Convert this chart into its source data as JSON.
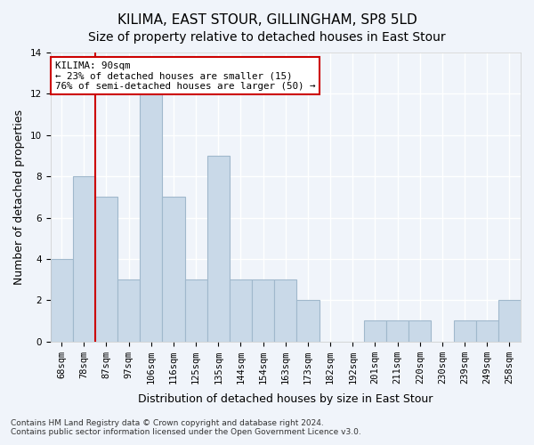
{
  "title": "KILIMA, EAST STOUR, GILLINGHAM, SP8 5LD",
  "subtitle": "Size of property relative to detached houses in East Stour",
  "xlabel": "Distribution of detached houses by size in East Stour",
  "ylabel": "Number of detached properties",
  "categories": [
    "68sqm",
    "78sqm",
    "87sqm",
    "97sqm",
    "106sqm",
    "116sqm",
    "125sqm",
    "135sqm",
    "144sqm",
    "154sqm",
    "163sqm",
    "173sqm",
    "182sqm",
    "192sqm",
    "201sqm",
    "211sqm",
    "220sqm",
    "230sqm",
    "239sqm",
    "249sqm",
    "258sqm"
  ],
  "values": [
    4,
    8,
    7,
    3,
    12,
    7,
    3,
    9,
    3,
    3,
    3,
    2,
    0,
    0,
    1,
    1,
    1,
    0,
    1,
    1,
    2
  ],
  "bar_color": "#c9d9e8",
  "bar_edge_color": "#a0b8cc",
  "vline_x": 1.5,
  "vline_color": "#cc0000",
  "ylim": [
    0,
    14
  ],
  "yticks": [
    0,
    2,
    4,
    6,
    8,
    10,
    12,
    14
  ],
  "annotation_text": "KILIMA: 90sqm\n← 23% of detached houses are smaller (15)\n76% of semi-detached houses are larger (50) →",
  "annotation_box_color": "#ffffff",
  "annotation_box_edge": "#cc0000",
  "footnote": "Contains HM Land Registry data © Crown copyright and database right 2024.\nContains public sector information licensed under the Open Government Licence v3.0.",
  "background_color": "#f0f4fa",
  "grid_color": "#ffffff",
  "title_fontsize": 11,
  "subtitle_fontsize": 10,
  "axis_label_fontsize": 9,
  "tick_fontsize": 7.5
}
